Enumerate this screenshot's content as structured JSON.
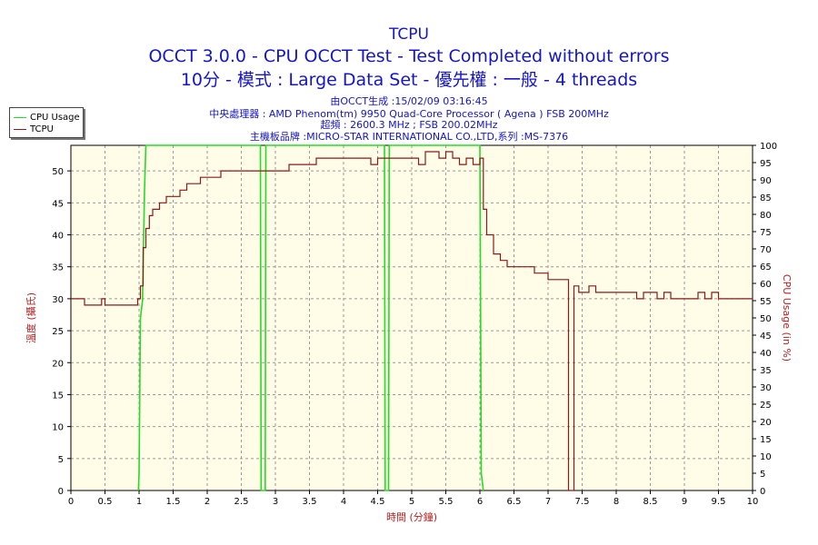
{
  "header": {
    "title": "TCPU",
    "subtitle1": "OCCT 3.0.0 - CPU OCCT Test - Test Completed without errors",
    "subtitle2": "10分 - 模式 : Large Data Set - 優先權 : 一般 - 4 threads"
  },
  "info": {
    "line1": "由OCCT生成 :15/02/09 03:16:45",
    "line2": "中央處理器 : AMD Phenom(tm) 9950 Quad-Core Processor ( Agena ) FSB 200MHz",
    "line3": "超頻 : 2600.3 MHz ; FSB 200.02MHz",
    "line4": "主機板品牌 :MICRO-STAR INTERNATIONAL CO.,LTD,系列 :MS-7376"
  },
  "colors": {
    "title": "#1515c8",
    "plot_bg": "#fffce8",
    "grid": "#999999",
    "tcpu": "#8b1a1a",
    "cpu_usage": "#22dd22",
    "axis_label": "#b22222"
  },
  "chart_data": {
    "type": "line",
    "title": "TCPU",
    "xlabel": "時間 (分鐘)",
    "ylabel": "溫度 (攝氏)",
    "y2label": "CPU Usage (in %)",
    "xlim": [
      0,
      10
    ],
    "ylim": [
      0,
      54
    ],
    "y2lim": [
      0,
      100
    ],
    "grid": true,
    "legend_position": "top-left",
    "x_ticks": [
      "0",
      "0.5",
      "1",
      "1.5",
      "2",
      "2.5",
      "3",
      "3.5",
      "4",
      "4.5",
      "5",
      "5.5",
      "6",
      "6.5",
      "7",
      "7.5",
      "8",
      "8.5",
      "9",
      "9.5",
      "10"
    ],
    "y_ticks": [
      "0",
      "5",
      "10",
      "15",
      "20",
      "25",
      "30",
      "35",
      "40",
      "45",
      "50"
    ],
    "y2_ticks": [
      "0",
      "5",
      "10",
      "15",
      "20",
      "25",
      "30",
      "35",
      "40",
      "45",
      "50",
      "55",
      "60",
      "65",
      "70",
      "75",
      "80",
      "85",
      "90",
      "95",
      "100"
    ],
    "series": [
      {
        "name": "CPU Usage",
        "axis": "right",
        "x": [
          0.99,
          1.0,
          1.02,
          1.05,
          1.08,
          1.1,
          2.78,
          2.79,
          2.82,
          2.85,
          2.86,
          4.6,
          4.61,
          4.66,
          4.67,
          6.0,
          6.02,
          6.05
        ],
        "y": [
          0,
          5,
          50,
          55,
          87,
          100,
          100,
          0,
          0,
          0,
          100,
          100,
          0,
          0,
          100,
          100,
          5,
          0
        ]
      },
      {
        "name": "TCPU",
        "axis": "left",
        "x": [
          0,
          0.2,
          0.4,
          0.45,
          0.5,
          0.9,
          0.98,
          1.02,
          1.06,
          1.1,
          1.15,
          1.2,
          1.3,
          1.4,
          1.5,
          1.6,
          1.7,
          1.8,
          1.9,
          2.0,
          2.1,
          2.2,
          2.3,
          2.4,
          2.5,
          2.7,
          2.8,
          3.0,
          3.2,
          3.4,
          3.5,
          3.6,
          3.7,
          3.8,
          3.9,
          4.0,
          4.3,
          4.4,
          4.5,
          4.8,
          5.0,
          5.1,
          5.2,
          5.3,
          5.4,
          5.5,
          5.6,
          5.65,
          5.7,
          5.8,
          5.9,
          6.0,
          6.05,
          6.1,
          6.2,
          6.3,
          6.4,
          6.5,
          6.8,
          7.0,
          7.2,
          7.3,
          7.35,
          7.38,
          7.42,
          7.45,
          7.5,
          7.6,
          7.7,
          7.8,
          8.0,
          8.3,
          8.4,
          8.6,
          8.7,
          8.8,
          9.0,
          9.1,
          9.2,
          9.3,
          9.4,
          9.5,
          9.6,
          9.7,
          9.8,
          10.0
        ],
        "y": [
          30,
          29,
          29,
          30,
          29,
          29,
          30,
          32,
          38,
          41,
          43,
          44,
          45,
          46,
          46,
          47,
          48,
          48,
          49,
          49,
          49,
          50,
          50,
          50,
          50,
          50,
          50,
          50,
          51,
          51,
          51,
          52,
          52,
          52,
          52,
          52,
          52,
          51,
          52,
          52,
          52,
          51,
          53,
          53,
          52,
          53,
          52,
          52,
          51,
          52,
          51,
          52,
          44,
          40,
          37,
          36,
          35,
          35,
          34,
          33,
          33,
          0,
          0,
          32,
          32,
          31,
          31,
          32,
          31,
          31,
          31,
          30,
          31,
          30,
          31,
          30,
          30,
          30,
          31,
          30,
          31,
          30,
          30,
          30,
          30,
          30
        ]
      }
    ]
  }
}
